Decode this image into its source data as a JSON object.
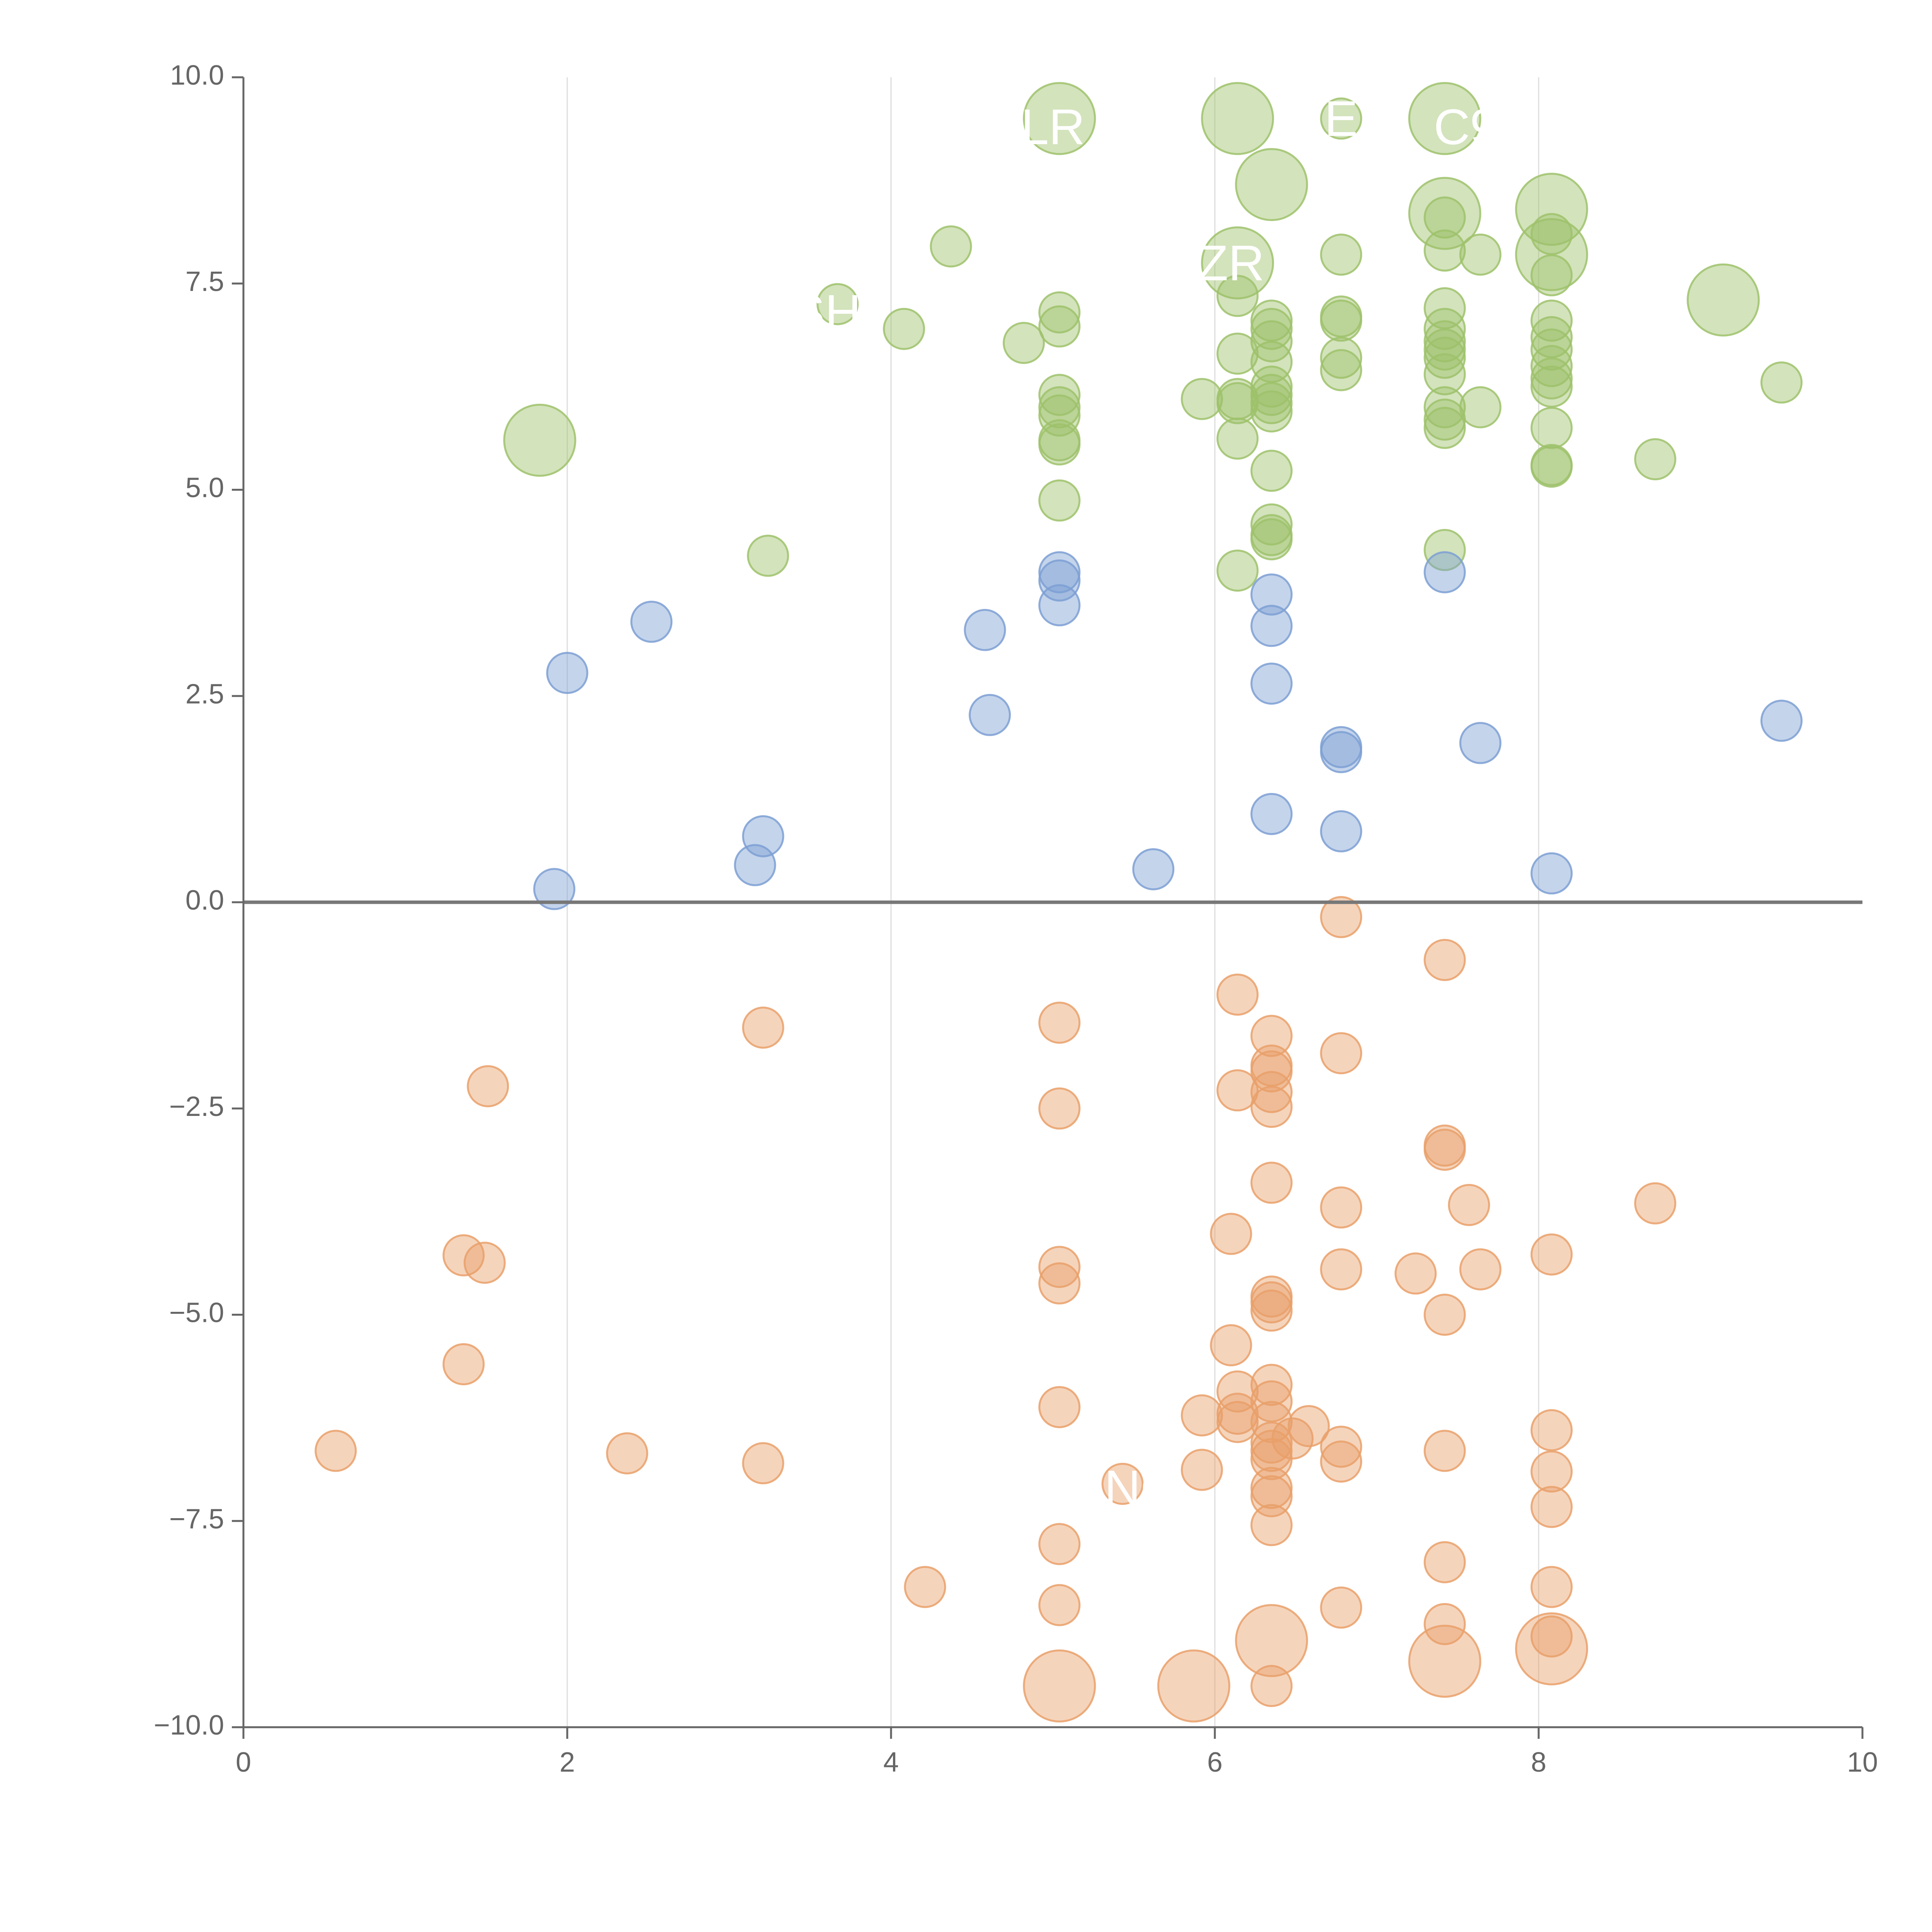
{
  "chart_data": {
    "type": "scatter",
    "title": "",
    "xlabel": "",
    "ylabel": "",
    "xlim": [
      0,
      10
    ],
    "ylim": [
      -10,
      10
    ],
    "x_ticks": [
      0,
      2,
      4,
      6,
      8,
      10
    ],
    "y_ticks": [
      -10,
      -7.5,
      -5,
      -2.5,
      0,
      2.5,
      5,
      7.5,
      10
    ],
    "x_tick_labels": [
      "0",
      "2",
      "4",
      "6",
      "8",
      "10"
    ],
    "y_tick_labels": [
      "−10.0",
      "−7.5",
      "−5.0",
      "−2.5",
      "0.0",
      "2.5",
      "5.0",
      "7.5",
      "10.0"
    ],
    "grid": "vertical",
    "colors": {
      "upper": "#9dc26b",
      "middle": "#7d9fd3",
      "lower": "#e9a06a",
      "axis": "#666666",
      "grid": "#dddddd",
      "zero_line": "#777777"
    },
    "point_labels": [
      {
        "text": "LR",
        "x": 5.0,
        "y": 9.35
      },
      {
        "text": "E",
        "x": 6.78,
        "y": 9.45
      },
      {
        "text": "C9",
        "x": 7.55,
        "y": 9.35
      },
      {
        "text": "ZR",
        "x": 6.1,
        "y": 7.7
      },
      {
        "text": "SH",
        "x": 3.6,
        "y": 7.1
      },
      {
        "text": "NO",
        "x": 5.55,
        "y": -7.15
      }
    ],
    "series": [
      {
        "name": "upper",
        "color": "#9dc26b",
        "points": [
          [
            5.04,
            9.5,
            2
          ],
          [
            6.14,
            9.5,
            2
          ],
          [
            6.78,
            9.5,
            1
          ],
          [
            7.42,
            9.5,
            2
          ],
          [
            6.35,
            8.7,
            2
          ],
          [
            7.42,
            8.35,
            2
          ],
          [
            8.08,
            8.4,
            2
          ],
          [
            7.42,
            8.3,
            1
          ],
          [
            4.37,
            7.95,
            1
          ],
          [
            6.14,
            7.75,
            2
          ],
          [
            6.78,
            7.85,
            1
          ],
          [
            7.42,
            7.9,
            1
          ],
          [
            7.64,
            7.85,
            1
          ],
          [
            8.08,
            7.85,
            2
          ],
          [
            8.08,
            8.1,
            1
          ],
          [
            8.08,
            7.6,
            1
          ],
          [
            3.67,
            7.25,
            1
          ],
          [
            4.08,
            6.95,
            1
          ],
          [
            4.82,
            6.78,
            1
          ],
          [
            5.04,
            7.15,
            1
          ],
          [
            5.04,
            6.98,
            1
          ],
          [
            6.14,
            7.35,
            1
          ],
          [
            6.35,
            7.05,
            1
          ],
          [
            6.35,
            6.95,
            1
          ],
          [
            6.35,
            6.8,
            1
          ],
          [
            6.78,
            7.1,
            1
          ],
          [
            6.78,
            7.05,
            1
          ],
          [
            7.42,
            7.2,
            1
          ],
          [
            7.42,
            6.95,
            1
          ],
          [
            7.42,
            6.8,
            1
          ],
          [
            7.42,
            6.7,
            1
          ],
          [
            8.08,
            7.05,
            1
          ],
          [
            8.08,
            6.85,
            1
          ],
          [
            8.08,
            6.7,
            1
          ],
          [
            9.14,
            7.3,
            2
          ],
          [
            6.14,
            6.65,
            1
          ],
          [
            6.35,
            6.55,
            1
          ],
          [
            6.78,
            6.6,
            1
          ],
          [
            6.78,
            6.45,
            1
          ],
          [
            7.42,
            6.6,
            1
          ],
          [
            7.42,
            6.4,
            1
          ],
          [
            8.08,
            6.5,
            1
          ],
          [
            8.08,
            6.35,
            1
          ],
          [
            8.08,
            6.25,
            1
          ],
          [
            9.5,
            6.3,
            1
          ],
          [
            5.04,
            6.15,
            1
          ],
          [
            5.04,
            6.0,
            1
          ],
          [
            5.04,
            5.9,
            1
          ],
          [
            5.92,
            6.1,
            1
          ],
          [
            6.14,
            6.1,
            1
          ],
          [
            6.14,
            6.05,
            1
          ],
          [
            6.35,
            6.25,
            1
          ],
          [
            6.35,
            6.15,
            1
          ],
          [
            6.35,
            6.05,
            1
          ],
          [
            6.35,
            5.95,
            1
          ],
          [
            7.42,
            6.0,
            1
          ],
          [
            7.42,
            5.85,
            1
          ],
          [
            7.42,
            5.75,
            1
          ],
          [
            7.64,
            6.0,
            1
          ],
          [
            1.83,
            5.6,
            2
          ],
          [
            5.04,
            5.6,
            1
          ],
          [
            5.04,
            5.55,
            1
          ],
          [
            6.14,
            5.62,
            1
          ],
          [
            8.08,
            5.75,
            1
          ],
          [
            8.08,
            5.3,
            1
          ],
          [
            8.08,
            5.28,
            1
          ],
          [
            8.72,
            5.37,
            1
          ],
          [
            6.35,
            5.23,
            1
          ],
          [
            5.04,
            4.87,
            1
          ],
          [
            6.35,
            4.58,
            1
          ],
          [
            6.35,
            4.45,
            1
          ],
          [
            6.35,
            4.4,
            1
          ],
          [
            7.42,
            4.27,
            1
          ],
          [
            3.24,
            4.2,
            1
          ],
          [
            6.14,
            4.02,
            1
          ]
        ]
      },
      {
        "name": "middle",
        "color": "#7d9fd3",
        "points": [
          [
            5.04,
            4.0,
            1
          ],
          [
            5.04,
            3.9,
            1
          ],
          [
            5.04,
            3.6,
            1
          ],
          [
            7.42,
            4.0,
            1
          ],
          [
            6.35,
            3.73,
            1
          ],
          [
            6.35,
            3.35,
            1
          ],
          [
            2.52,
            3.4,
            1
          ],
          [
            4.58,
            3.3,
            1
          ],
          [
            2.0,
            2.78,
            1
          ],
          [
            6.35,
            2.65,
            1
          ],
          [
            4.61,
            2.27,
            1
          ],
          [
            9.5,
            2.2,
            1
          ],
          [
            6.78,
            1.88,
            1
          ],
          [
            6.78,
            1.82,
            1
          ],
          [
            7.64,
            1.93,
            1
          ],
          [
            6.35,
            1.07,
            1
          ],
          [
            6.78,
            0.86,
            1
          ],
          [
            3.21,
            0.8,
            1
          ],
          [
            3.16,
            0.45,
            1
          ],
          [
            5.62,
            0.4,
            1
          ],
          [
            1.92,
            0.16,
            1
          ],
          [
            8.08,
            0.35,
            1
          ]
        ]
      },
      {
        "name": "lower",
        "color": "#e9a06a",
        "points": [
          [
            6.78,
            -0.18,
            1
          ],
          [
            7.42,
            -0.7,
            1
          ],
          [
            6.14,
            -1.12,
            1
          ],
          [
            3.21,
            -1.52,
            1
          ],
          [
            5.04,
            -1.46,
            1
          ],
          [
            6.35,
            -1.62,
            1
          ],
          [
            6.78,
            -1.83,
            1
          ],
          [
            6.35,
            -1.98,
            1
          ],
          [
            6.35,
            -2.05,
            1
          ],
          [
            1.51,
            -2.23,
            1
          ],
          [
            6.14,
            -2.28,
            1
          ],
          [
            6.35,
            -2.3,
            1
          ],
          [
            6.35,
            -2.48,
            1
          ],
          [
            5.04,
            -2.5,
            1
          ],
          [
            7.42,
            -2.95,
            1
          ],
          [
            7.42,
            -3.0,
            1
          ],
          [
            6.35,
            -3.4,
            1
          ],
          [
            6.78,
            -3.7,
            1
          ],
          [
            7.57,
            -3.67,
            1
          ],
          [
            8.72,
            -3.65,
            1
          ],
          [
            6.1,
            -4.02,
            1
          ],
          [
            1.36,
            -4.28,
            1
          ],
          [
            1.49,
            -4.37,
            1
          ],
          [
            5.04,
            -4.42,
            1
          ],
          [
            5.04,
            -4.62,
            1
          ],
          [
            6.78,
            -4.45,
            1
          ],
          [
            7.24,
            -4.5,
            1
          ],
          [
            7.64,
            -4.45,
            1
          ],
          [
            8.08,
            -4.27,
            1
          ],
          [
            6.35,
            -4.78,
            1
          ],
          [
            6.35,
            -4.85,
            1
          ],
          [
            6.35,
            -4.95,
            1
          ],
          [
            7.42,
            -5.0,
            1
          ],
          [
            6.1,
            -5.37,
            1
          ],
          [
            1.36,
            -5.6,
            1
          ],
          [
            6.14,
            -5.93,
            1
          ],
          [
            6.35,
            -5.85,
            1
          ],
          [
            6.35,
            -6.05,
            1
          ],
          [
            5.04,
            -6.12,
            1
          ],
          [
            5.92,
            -6.22,
            1
          ],
          [
            6.14,
            -6.2,
            1
          ],
          [
            6.14,
            -6.3,
            1
          ],
          [
            6.35,
            -6.3,
            1
          ],
          [
            6.58,
            -6.35,
            1
          ],
          [
            6.48,
            -6.5,
            1
          ],
          [
            6.35,
            -6.55,
            1
          ],
          [
            6.35,
            -6.65,
            1
          ],
          [
            6.35,
            -6.75,
            1
          ],
          [
            6.78,
            -6.6,
            1
          ],
          [
            6.78,
            -6.78,
            1
          ],
          [
            7.42,
            -6.65,
            1
          ],
          [
            8.08,
            -6.4,
            1
          ],
          [
            8.08,
            -6.9,
            1
          ],
          [
            0.57,
            -6.65,
            1
          ],
          [
            2.37,
            -6.68,
            1
          ],
          [
            3.21,
            -6.8,
            1
          ],
          [
            5.92,
            -6.88,
            1
          ],
          [
            5.43,
            -7.05,
            1
          ],
          [
            6.35,
            -7.1,
            1
          ],
          [
            6.35,
            -7.2,
            1
          ],
          [
            8.08,
            -7.33,
            1
          ],
          [
            6.35,
            -7.55,
            1
          ],
          [
            5.04,
            -7.78,
            1
          ],
          [
            7.42,
            -8.0,
            1
          ],
          [
            4.21,
            -8.3,
            1
          ],
          [
            8.08,
            -8.3,
            1
          ],
          [
            5.04,
            -8.52,
            1
          ],
          [
            6.78,
            -8.55,
            1
          ],
          [
            7.42,
            -8.75,
            1
          ],
          [
            8.08,
            -8.9,
            1
          ],
          [
            6.35,
            -8.95,
            2
          ],
          [
            8.08,
            -9.05,
            2
          ],
          [
            7.42,
            -9.2,
            2
          ],
          [
            5.04,
            -9.5,
            2
          ],
          [
            5.87,
            -9.5,
            2
          ],
          [
            6.35,
            -9.5,
            1
          ]
        ]
      }
    ]
  }
}
